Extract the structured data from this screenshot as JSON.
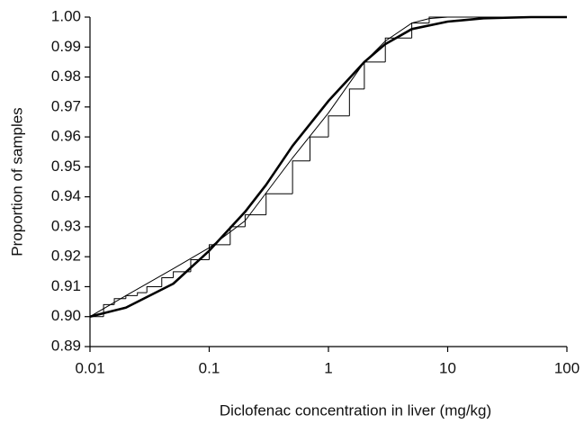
{
  "chart_data": {
    "type": "line",
    "log_x": true,
    "xlabel": "Diclofenac concentration in liver (mg/kg)",
    "ylabel": "Proportion of samples",
    "xlim": [
      0.01,
      100
    ],
    "xticks": [
      0.01,
      0.1,
      1,
      10,
      100
    ],
    "ylim": [
      0.89,
      1.0
    ],
    "yticks": [
      0.89,
      {
        "value": 0.9,
        "label": "0.90"
      },
      0.91,
      0.92,
      0.93,
      0.94,
      0.95,
      0.96,
      0.97,
      0.98,
      0.99,
      {
        "value": 1.0,
        "label": "1.00"
      }
    ],
    "series": [
      {
        "color": "#000000",
        "step": true,
        "width": 1,
        "x": [
          0.01,
          0.013,
          0.016,
          0.02,
          0.025,
          0.03,
          0.04,
          0.05,
          0.07,
          0.1,
          0.15,
          0.2,
          0.3,
          0.5,
          0.7,
          1,
          1.5,
          2,
          3,
          5,
          7,
          50
        ],
        "values": [
          0.9,
          0.904,
          0.906,
          0.907,
          0.908,
          0.91,
          0.913,
          0.915,
          0.919,
          0.924,
          0.93,
          0.934,
          0.941,
          0.952,
          0.96,
          0.967,
          0.976,
          0.985,
          0.993,
          0.998,
          1.0,
          1.0
        ]
      },
      {
        "color": "#000000",
        "width": 1,
        "x": [
          0.01,
          0.02,
          0.05,
          0.1,
          0.2,
          0.5,
          1,
          2,
          3,
          5,
          7,
          10,
          100
        ],
        "values": [
          0.9,
          0.907,
          0.916,
          0.923,
          0.932,
          0.953,
          0.968,
          0.985,
          0.992,
          0.998,
          0.9995,
          1.0,
          1.0
        ]
      },
      {
        "color": "#000000",
        "width": 2.6,
        "x": [
          0.01,
          0.02,
          0.05,
          0.1,
          0.2,
          0.3,
          0.5,
          1,
          2,
          3,
          5,
          10,
          20,
          50,
          100
        ],
        "values": [
          0.9,
          0.903,
          0.911,
          0.922,
          0.935,
          0.944,
          0.957,
          0.972,
          0.985,
          0.991,
          0.996,
          0.9985,
          0.9996,
          1.0,
          1.0
        ]
      }
    ]
  }
}
